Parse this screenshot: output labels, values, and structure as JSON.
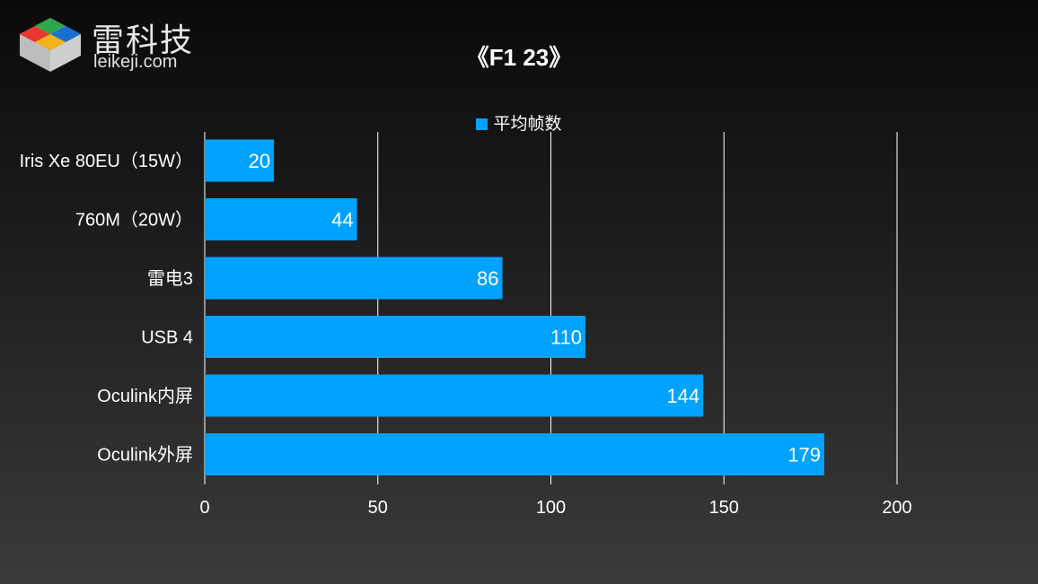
{
  "brand": {
    "name_cn": "雷科技",
    "domain": "leikeji.com",
    "logo_icon": "cube-logo-icon",
    "colors": [
      "#e8372f",
      "#2ca84a",
      "#1b6fd1",
      "#f2b21a",
      "#d9d9d9"
    ]
  },
  "chart_data": {
    "type": "bar",
    "orientation": "horizontal",
    "title": "《F1 23》",
    "categories": [
      "Iris Xe 80EU（15W）",
      "760M（20W）",
      "雷电3",
      "USB 4",
      "Oculink内屏",
      "Oculink外屏"
    ],
    "series": [
      {
        "name": "平均帧数",
        "values": [
          20,
          44,
          86,
          110,
          144,
          179
        ],
        "color": "#00a2ff"
      }
    ],
    "xlim": [
      0,
      200
    ],
    "xticks": [
      0,
      50,
      100,
      150,
      200
    ],
    "xlabel": "",
    "ylabel": "",
    "grid": true,
    "legend": "top-center",
    "data_labels": true
  }
}
